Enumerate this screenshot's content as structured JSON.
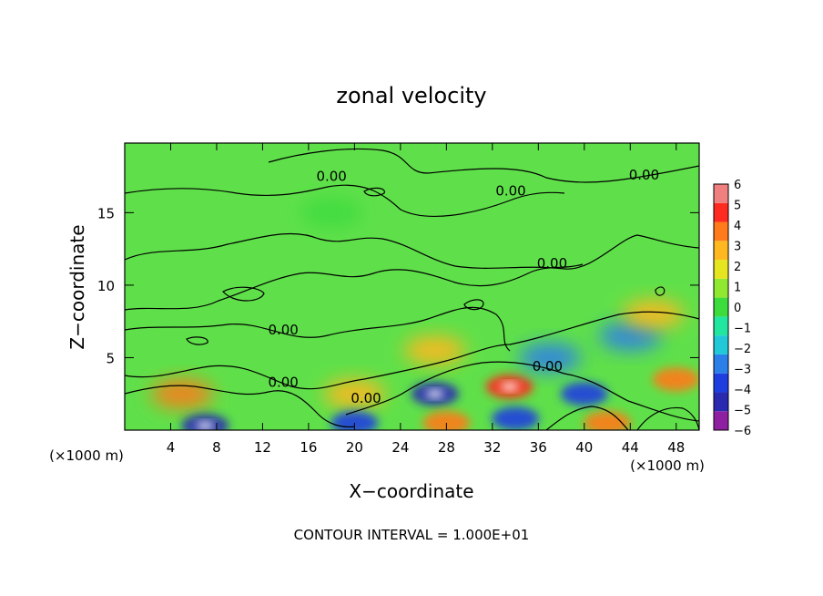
{
  "chart_data": {
    "type": "heatmap",
    "title": "zonal velocity",
    "xlabel": "X−coordinate",
    "ylabel": "Z−coordinate",
    "x_unit_left": "(×1000 m)",
    "x_unit_right": "(×1000 m)",
    "footer": "CONTOUR INTERVAL = 1.000E+01",
    "xlim": [
      0,
      50
    ],
    "ylim": [
      0,
      19.8
    ],
    "x_ticks": [
      4,
      8,
      12,
      16,
      20,
      24,
      28,
      32,
      36,
      40,
      44,
      48
    ],
    "y_ticks": [
      5,
      10,
      15
    ],
    "colorbar": {
      "levels": [
        -6,
        -5,
        -4,
        -3,
        -2,
        -1,
        0,
        1,
        2,
        3,
        4,
        5,
        6
      ],
      "colors": [
        "#8e1fa0",
        "#2a2ab0",
        "#1e3ee0",
        "#2b7fe8",
        "#20c8d8",
        "#20e6a0",
        "#3ddc3d",
        "#90e830",
        "#e6e620",
        "#ffb820",
        "#ff7a1a",
        "#ff2a20",
        "#f08080"
      ]
    },
    "contour_label": "0.00",
    "contour_labels": [
      {
        "x": 18.0,
        "z": 17.2
      },
      {
        "x": 33.6,
        "z": 16.2
      },
      {
        "x": 45.2,
        "z": 17.3
      },
      {
        "x": 37.2,
        "z": 11.2
      },
      {
        "x": 13.8,
        "z": 6.6
      },
      {
        "x": 36.8,
        "z": 4.1
      },
      {
        "x": 13.8,
        "z": 3.0
      },
      {
        "x": 21.0,
        "z": 1.9
      }
    ],
    "features": [
      {
        "x": 18,
        "z": 15,
        "value": 0
      },
      {
        "x": 5,
        "z": 2.5,
        "value": 3.5
      },
      {
        "x": 7,
        "z": 0.3,
        "value": -5
      },
      {
        "x": 20,
        "z": 2.5,
        "value": 3
      },
      {
        "x": 20,
        "z": 0.5,
        "value": -4
      },
      {
        "x": 27,
        "z": 2.5,
        "value": -5
      },
      {
        "x": 28,
        "z": 0.5,
        "value": 4
      },
      {
        "x": 33.5,
        "z": 3.0,
        "value": 5
      },
      {
        "x": 34,
        "z": 0.8,
        "value": -4
      },
      {
        "x": 40,
        "z": 2.5,
        "value": -4
      },
      {
        "x": 42,
        "z": 0.5,
        "value": 4
      },
      {
        "x": 44,
        "z": 6.5,
        "value": -3
      },
      {
        "x": 46,
        "z": 8.0,
        "value": 3
      },
      {
        "x": 48,
        "z": 3.5,
        "value": 4
      },
      {
        "x": 27,
        "z": 5.5,
        "value": 3
      },
      {
        "x": 37,
        "z": 5.0,
        "value": -3
      }
    ]
  }
}
